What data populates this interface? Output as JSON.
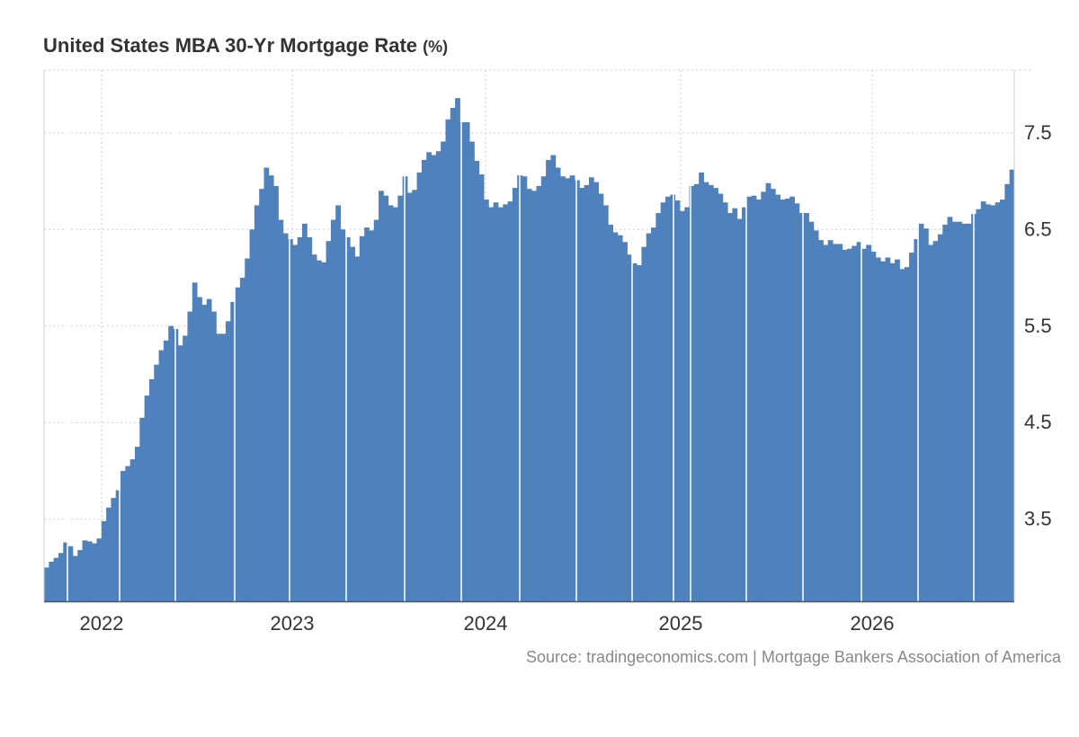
{
  "chart_data": {
    "type": "bar",
    "title": "United States MBA 30-Yr Mortgage Rate",
    "unit": "(%)",
    "xlabel": "",
    "ylabel": "",
    "ylim": [
      2.65,
      8.15
    ],
    "y_ticks": [
      3.5,
      4.5,
      5.5,
      6.5,
      7.5
    ],
    "y_tick_labels": [
      "3.5",
      "4.5",
      "5.5",
      "6.5",
      "7.5"
    ],
    "x_tick_labels": [
      "2022",
      "2023",
      "2024",
      "2025",
      "2026"
    ],
    "grid": true,
    "color": "#4f81bd",
    "series": [
      {
        "values": [
          3.0,
          3.06,
          3.1,
          3.15,
          3.26,
          3.22,
          3.12,
          3.18,
          3.28,
          3.27,
          3.25,
          3.3,
          3.48,
          3.62,
          3.72,
          3.8,
          4.0,
          4.05,
          4.12,
          4.25,
          4.55,
          4.78,
          4.95,
          5.1,
          5.25,
          5.35,
          5.5,
          5.47,
          5.3,
          5.4,
          5.65,
          5.95,
          5.8,
          5.72,
          5.78,
          5.65,
          5.42,
          5.42,
          5.55,
          5.75,
          5.9,
          6.0,
          6.2,
          6.5,
          6.75,
          6.92,
          7.14,
          7.06,
          6.95,
          6.6,
          6.46,
          6.4,
          6.34,
          6.42,
          6.56,
          6.42,
          6.24,
          6.18,
          6.16,
          6.38,
          6.6,
          6.75,
          6.5,
          6.42,
          6.32,
          6.22,
          6.43,
          6.52,
          6.49,
          6.6,
          6.9,
          6.85,
          6.75,
          6.73,
          6.85,
          7.05,
          6.88,
          6.91,
          7.09,
          7.22,
          7.3,
          7.27,
          7.31,
          7.41,
          7.64,
          7.76,
          7.86,
          7.61,
          7.61,
          7.41,
          7.21,
          7.07,
          6.81,
          6.73,
          6.78,
          6.73,
          6.76,
          6.79,
          6.93,
          7.06,
          7.05,
          6.92,
          6.9,
          6.95,
          7.05,
          7.22,
          7.27,
          7.14,
          7.05,
          7.03,
          7.06,
          7.01,
          6.93,
          6.96,
          7.04,
          6.99,
          6.87,
          6.75,
          6.55,
          6.47,
          6.44,
          6.37,
          6.24,
          6.15,
          6.13,
          6.32,
          6.46,
          6.52,
          6.67,
          6.78,
          6.84,
          6.86,
          6.8,
          6.69,
          6.73,
          6.95,
          6.97,
          7.09,
          6.99,
          6.96,
          6.93,
          6.87,
          6.78,
          6.67,
          6.72,
          6.61,
          6.73,
          6.84,
          6.85,
          6.81,
          6.89,
          6.98,
          6.92,
          6.86,
          6.81,
          6.82,
          6.84,
          6.77,
          6.67,
          6.67,
          6.58,
          6.49,
          6.39,
          6.34,
          6.39,
          6.35,
          6.35,
          6.29,
          6.3,
          6.33,
          6.37,
          6.3,
          6.34,
          6.27,
          6.21,
          6.17,
          6.21,
          6.15,
          6.19,
          6.09,
          6.11,
          6.26,
          6.4,
          6.56,
          6.51,
          6.34,
          6.38,
          6.45,
          6.55,
          6.63,
          6.58,
          6.58,
          6.56,
          6.56,
          6.66,
          6.71,
          6.79,
          6.76,
          6.75,
          6.78,
          6.81,
          6.97,
          7.12
        ]
      }
    ]
  },
  "source_text": "Source: tradingeconomics.com | Mortgage Bankers Association of America"
}
